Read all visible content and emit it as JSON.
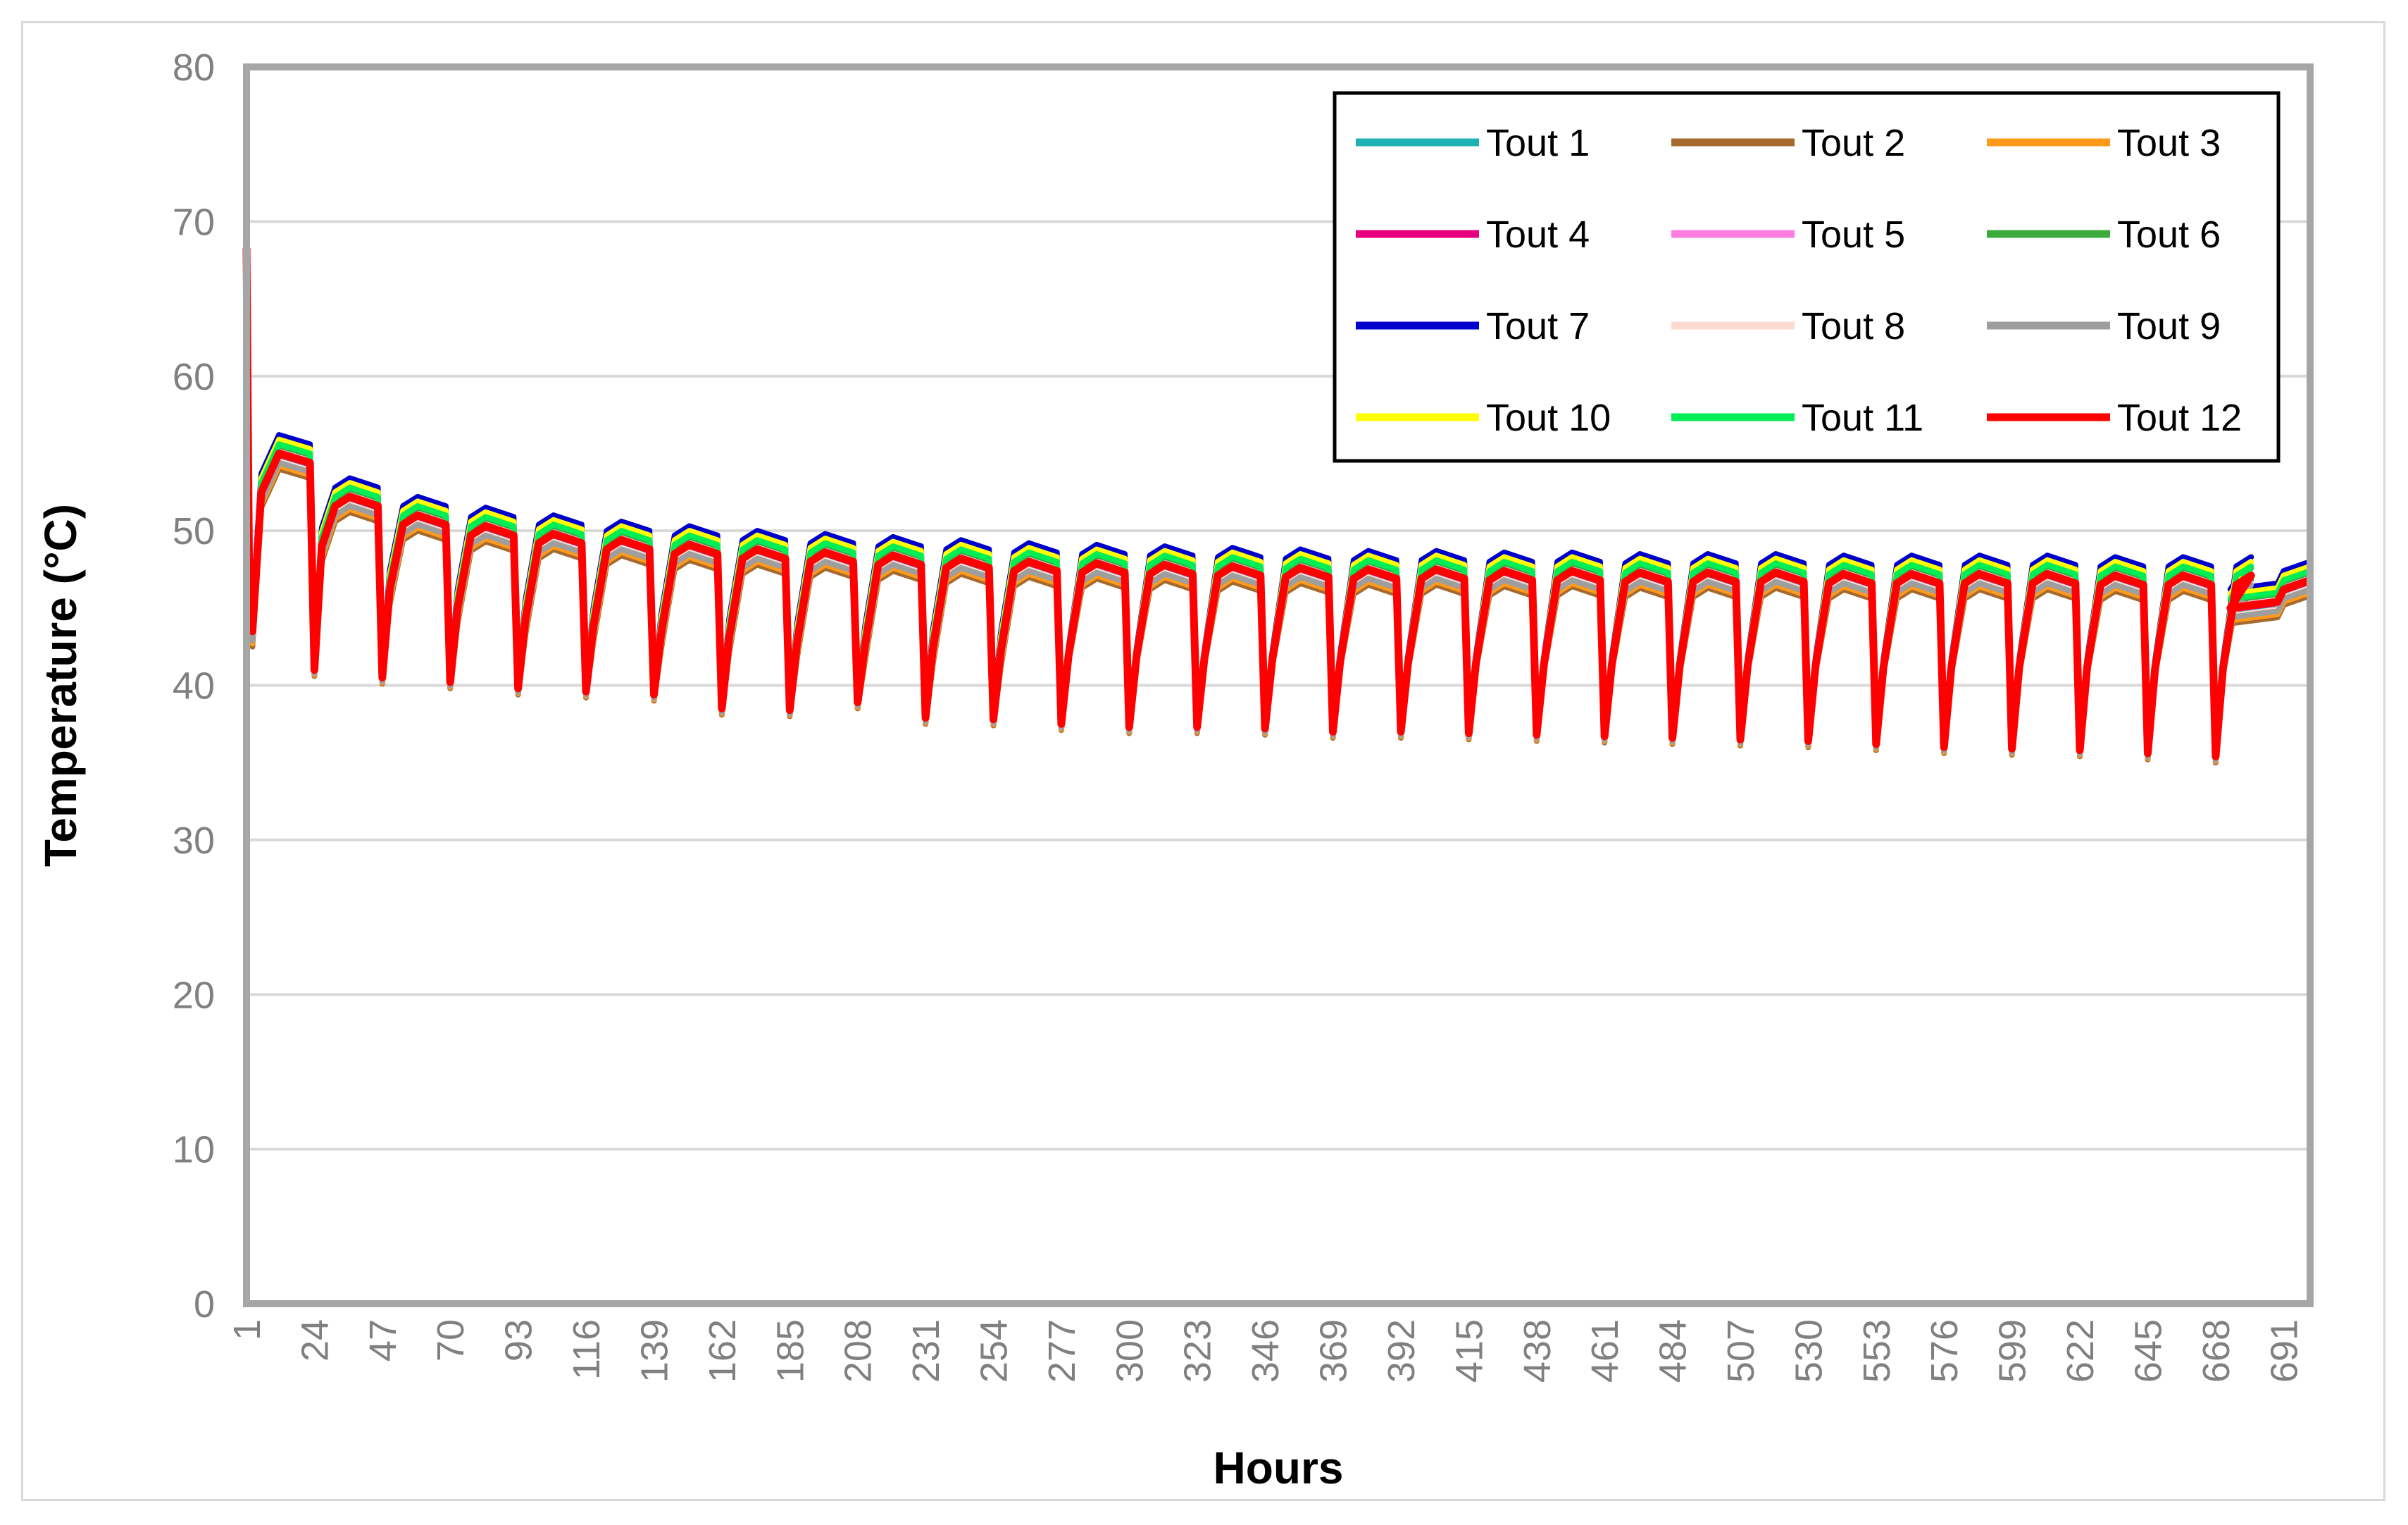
{
  "chart_data": {
    "type": "line",
    "title": "",
    "xlabel": "Hours",
    "ylabel": "Temperature (°C)",
    "ylim": [
      0,
      80
    ],
    "xlim": [
      1,
      700
    ],
    "yticks": [
      0,
      10,
      20,
      30,
      40,
      50,
      60,
      70,
      80
    ],
    "xticks": [
      1,
      24,
      47,
      70,
      93,
      116,
      139,
      162,
      185,
      208,
      231,
      254,
      277,
      300,
      323,
      346,
      369,
      392,
      415,
      438,
      461,
      484,
      507,
      530,
      553,
      576,
      599,
      622,
      645,
      668,
      691
    ],
    "grid": "horizontal",
    "legend_position": "top-right",
    "cycle_peaks": {
      "x": [
        1,
        24,
        47,
        70,
        93,
        116,
        139,
        162,
        185,
        208,
        231,
        254,
        277,
        300,
        323,
        346,
        369,
        392,
        415,
        438,
        461,
        484,
        507,
        530,
        553,
        576,
        599,
        622,
        645,
        668,
        691,
        700
      ],
      "values": [
        55.0,
        52.2,
        51.0,
        50.3,
        49.8,
        49.4,
        49.1,
        48.8,
        48.6,
        48.4,
        48.2,
        48.0,
        47.9,
        47.8,
        47.7,
        47.6,
        47.5,
        47.5,
        47.4,
        47.4,
        47.3,
        47.3,
        47.3,
        47.2,
        47.2,
        47.2,
        47.2,
        47.1,
        47.1,
        47.1,
        46.0,
        47.0
      ]
    },
    "cycle_troughs": {
      "x": [
        24,
        47,
        70,
        93,
        116,
        139,
        162,
        185,
        208,
        231,
        254,
        277,
        300,
        323,
        346,
        369,
        392,
        415,
        438,
        461,
        484,
        507,
        530,
        553,
        576,
        599,
        622,
        645,
        668
      ],
      "values": [
        41.0,
        40.5,
        40.2,
        39.8,
        39.6,
        39.4,
        38.5,
        38.4,
        38.9,
        37.9,
        37.8,
        37.5,
        37.3,
        37.3,
        37.2,
        37.0,
        37.0,
        36.9,
        36.8,
        36.7,
        36.6,
        36.5,
        36.4,
        36.2,
        36.0,
        35.9,
        35.8,
        35.6,
        35.4
      ]
    },
    "series": [
      {
        "name": "Tout 1",
        "color": "#1fb2b2",
        "offset": -0.3
      },
      {
        "name": "Tout 2",
        "color": "#a5692e",
        "offset": -1.0
      },
      {
        "name": "Tout 3",
        "color": "#ff9a1a",
        "offset": -0.8
      },
      {
        "name": "Tout 4",
        "color": "#e6007e",
        "offset": -0.1
      },
      {
        "name": "Tout 5",
        "color": "#ff7de0",
        "offset": 0.1
      },
      {
        "name": "Tout 6",
        "color": "#3caa3c",
        "offset": 0.5
      },
      {
        "name": "Tout 7",
        "color": "#0000cc",
        "offset": 1.2
      },
      {
        "name": "Tout 8",
        "color": "#fcdcd0",
        "offset": -0.5
      },
      {
        "name": "Tout 9",
        "color": "#9e9e9e",
        "offset": -0.6
      },
      {
        "name": "Tout 10",
        "color": "#ffff00",
        "offset": 0.9
      },
      {
        "name": "Tout 11",
        "color": "#00ee55",
        "offset": 0.6
      },
      {
        "name": "Tout 12",
        "color": "#ff0000",
        "offset": 0.0
      }
    ]
  }
}
